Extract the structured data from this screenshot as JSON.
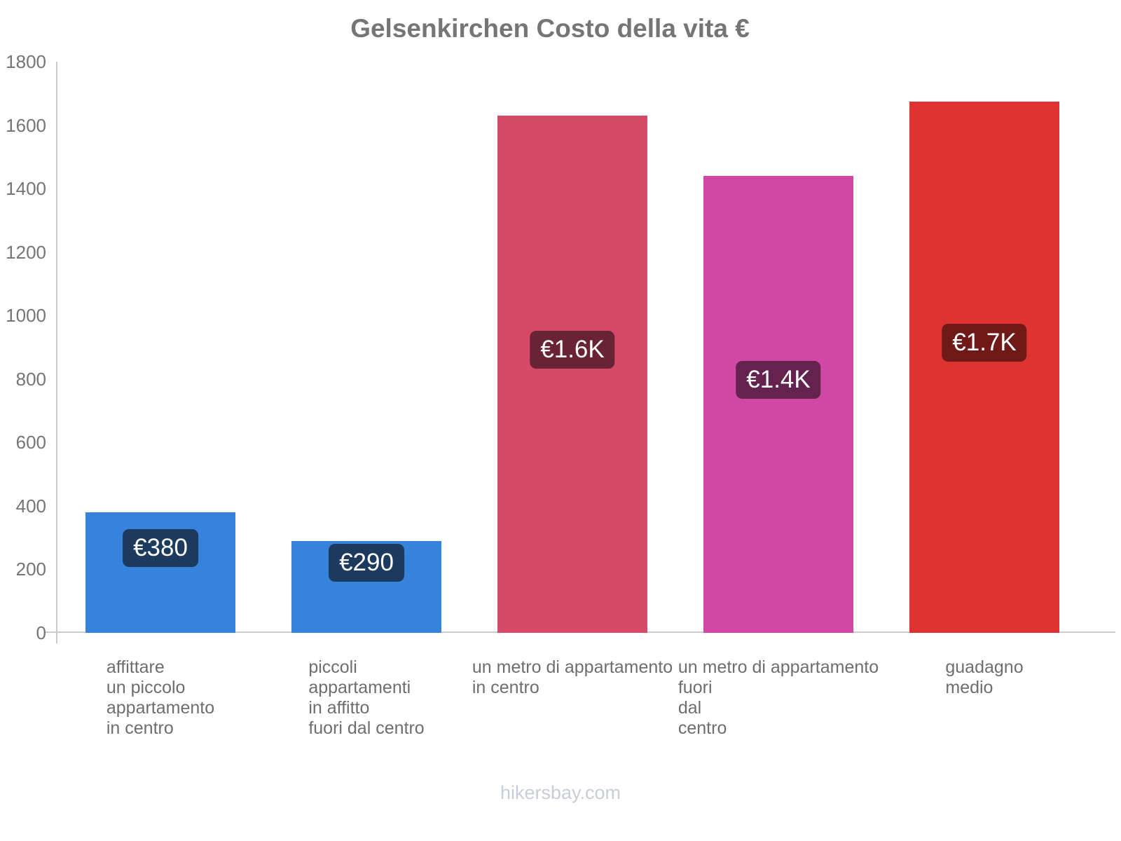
{
  "title": "Gelsenkirchen Costo della vita €",
  "watermark": "hikersbay.com",
  "chart_data": {
    "type": "bar",
    "title": "Gelsenkirchen Costo della vita €",
    "currency": "EUR",
    "xlabel": "",
    "ylabel": "",
    "ylim": [
      0,
      1800
    ],
    "yticks": [
      0,
      200,
      400,
      600,
      800,
      1000,
      1200,
      1400,
      1600,
      1800
    ],
    "grid": false,
    "legend": false,
    "categories": [
      "affittare un piccolo appartamento in centro",
      "piccoli appartamenti in affitto fuori dal centro",
      "un metro di appartamento in centro",
      "un metro di appartamento fuori dal centro",
      "guadagno medio"
    ],
    "categories_lines": [
      [
        "affittare",
        "un piccolo",
        "appartamento",
        "in centro"
      ],
      [
        "piccoli",
        "appartamenti",
        "in affitto",
        "fuori dal centro"
      ],
      [
        "un metro di appartamento",
        "in centro"
      ],
      [
        "un metro di appartamento",
        "fuori",
        "dal",
        "centro"
      ],
      [
        "guadagno",
        "medio"
      ]
    ],
    "values": [
      380,
      290,
      1630,
      1440,
      1675
    ],
    "value_labels": [
      "€380",
      "€290",
      "€1.6K",
      "€1.4K",
      "€1.7K"
    ],
    "bar_colors": [
      "#3583DB",
      "#3583DB",
      "#D44A68",
      "#D148A4",
      "#DD3432"
    ],
    "value_chip_colors": [
      "#1C3A5E",
      "#1C3A5E",
      "#6A2334",
      "#64224E",
      "#6F1A19"
    ],
    "axis_color": "#CCCCCC",
    "tick_text_color": "#757575",
    "category_text_color": "#6E6E6E",
    "title_color": "#757575",
    "watermark_color": "#C8CDD6",
    "background_color": "#FFFFFF"
  }
}
